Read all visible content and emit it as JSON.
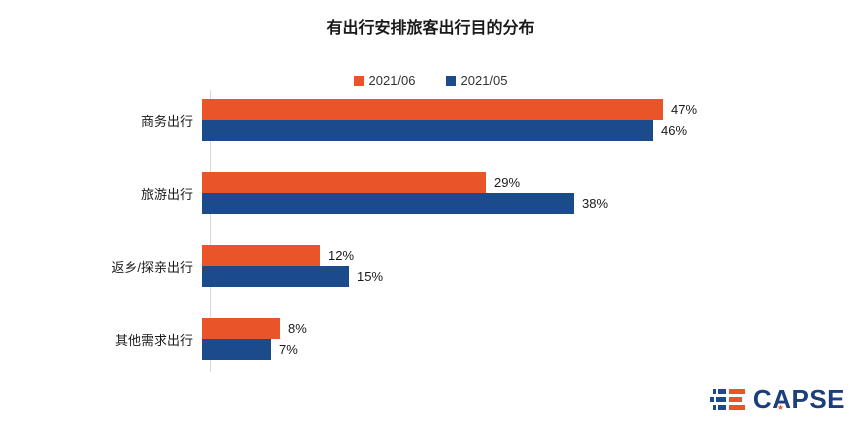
{
  "title": "有出行安排旅客出行目的分布",
  "legend": {
    "items": [
      {
        "label": "2021/06",
        "color": "#E95428"
      },
      {
        "label": "2021/05",
        "color": "#1C4B8C"
      }
    ]
  },
  "chart_data": {
    "type": "bar",
    "orientation": "horizontal",
    "title": "有出行安排旅客出行目的分布",
    "categories": [
      "商务出行",
      "旅游出行",
      "返乡/探亲出行",
      "其他需求出行"
    ],
    "series": [
      {
        "name": "2021/06",
        "color": "#E95428",
        "values": [
          47,
          29,
          12,
          8
        ]
      },
      {
        "name": "2021/05",
        "color": "#1C4B8C",
        "values": [
          46,
          38,
          15,
          7
        ]
      }
    ],
    "value_suffix": "%",
    "value_labels": true,
    "xlim": [
      0,
      50
    ],
    "grid": false,
    "legend_position": "top"
  },
  "colors": {
    "series_2021_06": "#E95428",
    "series_2021_05": "#1C4B8C",
    "axis_line": "#D9D9D9",
    "text": "#1A1A1A",
    "background": "#FFFFFF",
    "logo_navy": "#1B3E7C",
    "logo_orange": "#E95428"
  },
  "logo": {
    "text": "CAPSE",
    "star_glyph": "★",
    "icon": "capse-logo-icon"
  }
}
